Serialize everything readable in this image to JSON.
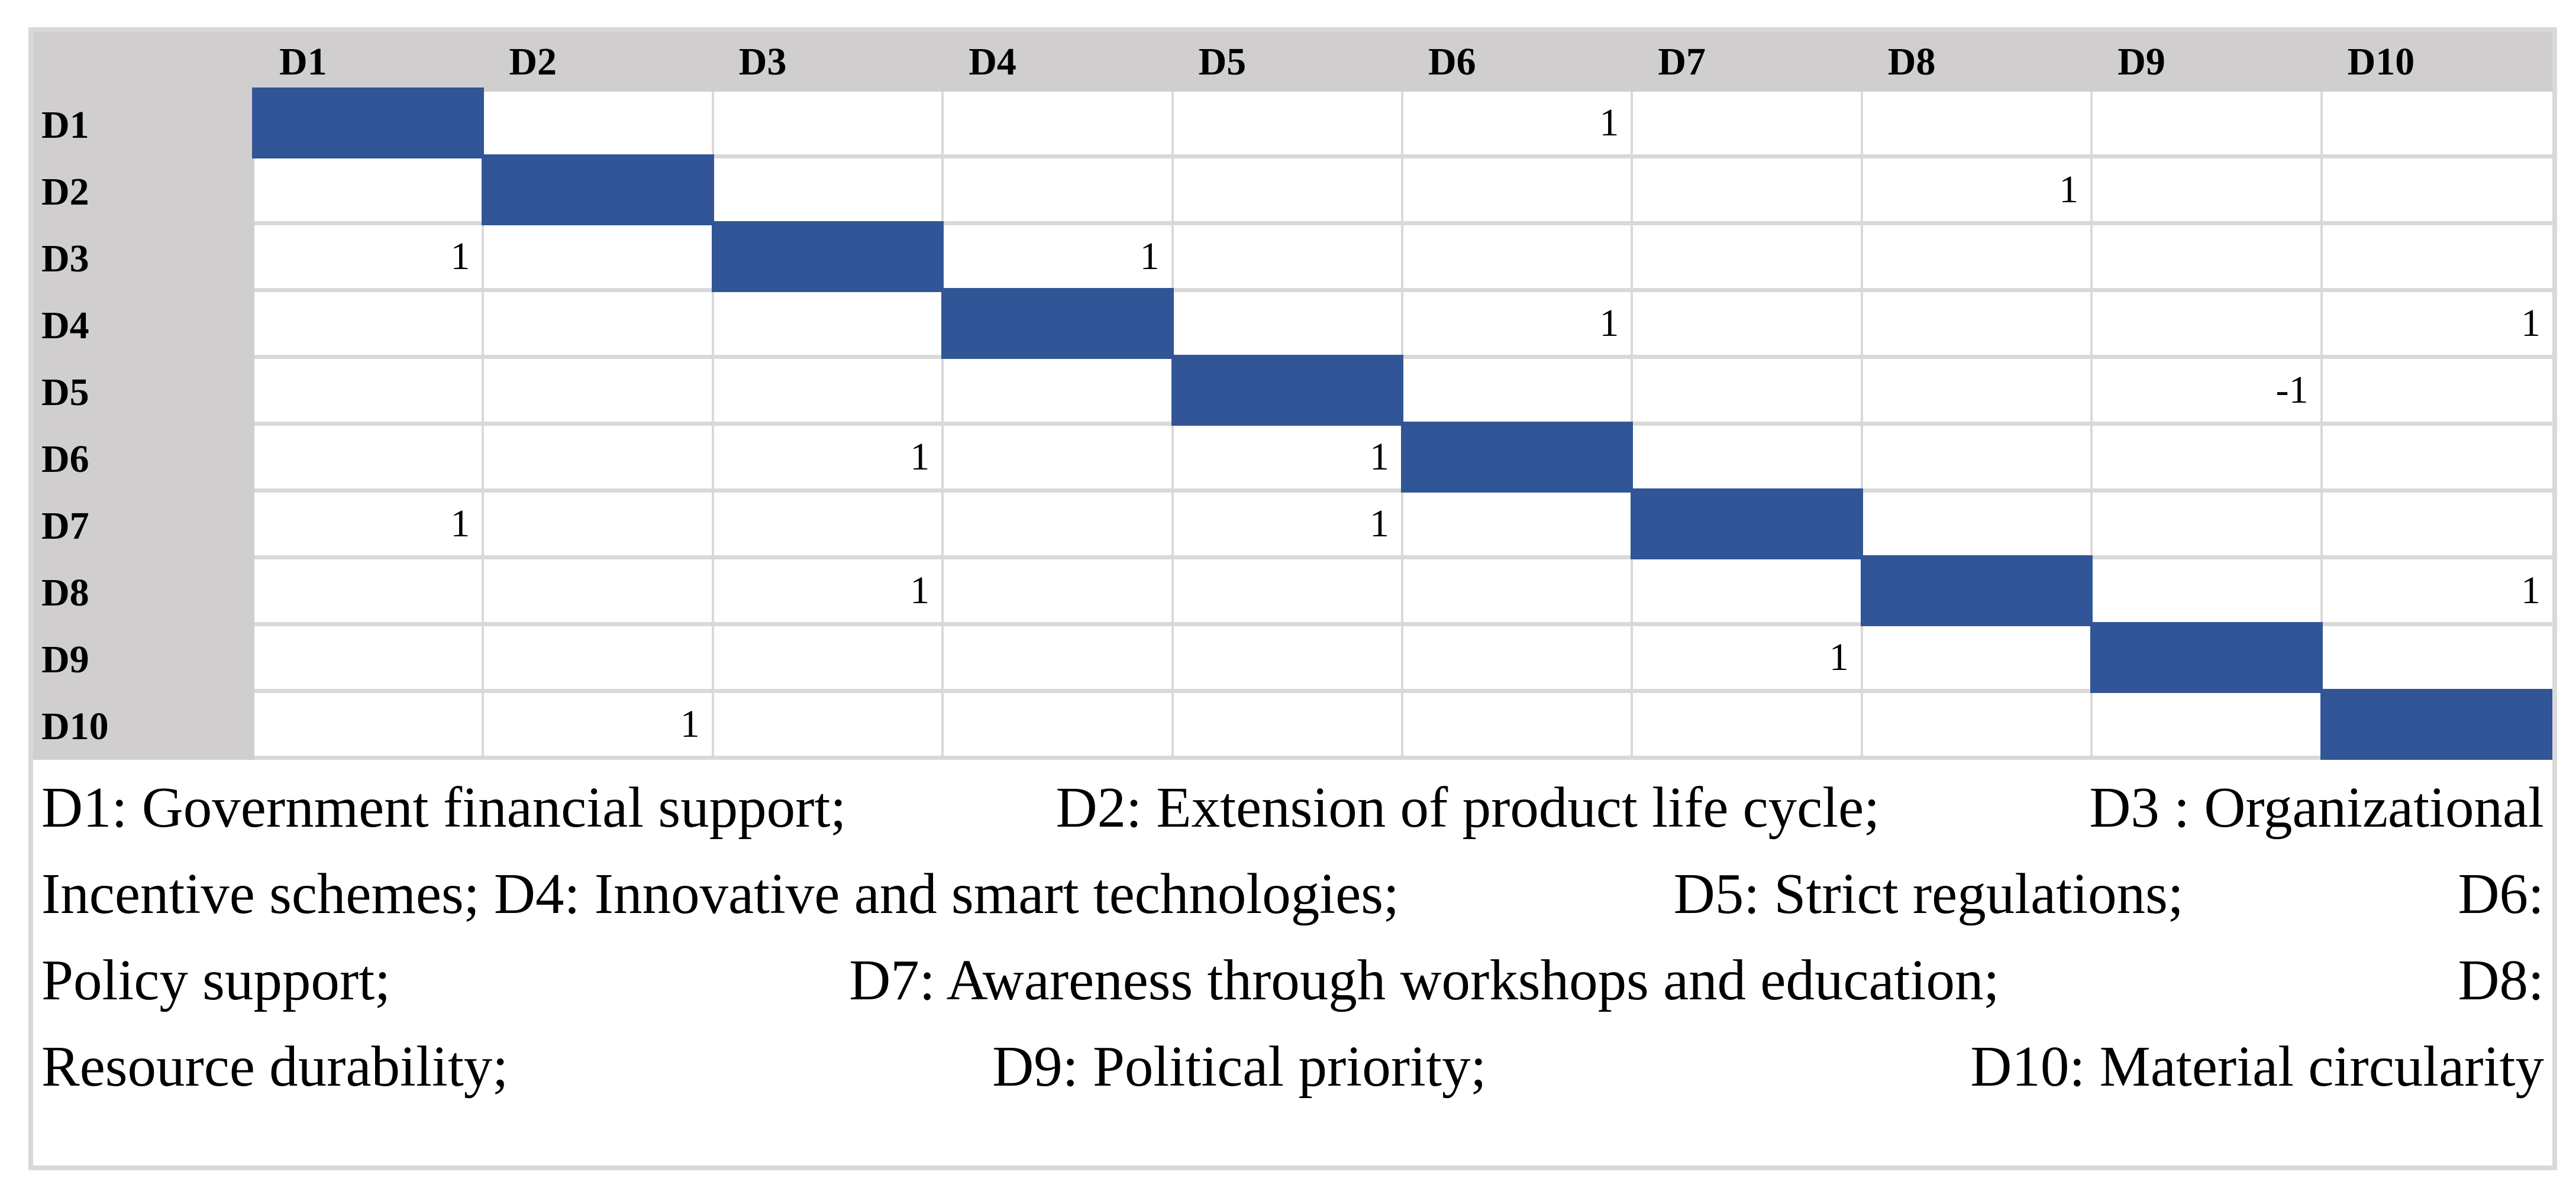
{
  "chart_data": {
    "type": "table",
    "columns": [
      "D1",
      "D2",
      "D3",
      "D4",
      "D5",
      "D6",
      "D7",
      "D8",
      "D9",
      "D10"
    ],
    "row_labels": [
      "D1",
      "D2",
      "D3",
      "D4",
      "D5",
      "D6",
      "D7",
      "D8",
      "D9",
      "D10"
    ],
    "cells": [
      [
        null,
        null,
        null,
        null,
        null,
        1,
        null,
        null,
        null,
        null
      ],
      [
        null,
        null,
        null,
        null,
        null,
        null,
        null,
        1,
        null,
        null
      ],
      [
        1,
        null,
        null,
        1,
        null,
        null,
        null,
        null,
        null,
        null
      ],
      [
        null,
        null,
        null,
        null,
        null,
        1,
        null,
        null,
        null,
        1
      ],
      [
        null,
        null,
        null,
        null,
        null,
        null,
        null,
        null,
        -1,
        null
      ],
      [
        null,
        null,
        1,
        null,
        1,
        null,
        null,
        null,
        null,
        null
      ],
      [
        1,
        null,
        null,
        null,
        1,
        null,
        null,
        null,
        null,
        null
      ],
      [
        null,
        null,
        1,
        null,
        null,
        null,
        null,
        null,
        null,
        1
      ],
      [
        null,
        null,
        null,
        null,
        null,
        null,
        1,
        null,
        null,
        null
      ],
      [
        null,
        1,
        null,
        null,
        null,
        null,
        null,
        null,
        null,
        null
      ]
    ],
    "diagonal_filled": true,
    "layout_hints": {
      "diagonal_cells_fill": "#315596",
      "header_band_fill": "#d0cece",
      "gridline_color": "#d9d9d9",
      "values_alignment": "right"
    }
  },
  "legend": {
    "lines": [
      [
        "D1: Government financial support;",
        "D2: Extension of product life cycle;",
        "D3 : Organizational"
      ],
      [
        "Incentive schemes; D4: Innovative and smart technologies;",
        "D5: Strict regulations;",
        "D6:"
      ],
      [
        "Policy support;",
        "D7: Awareness through workshops and education;",
        "D8:"
      ],
      [
        "Resource durability;",
        "D9: Political priority;",
        "D10: Material circularity"
      ]
    ]
  },
  "colors": {
    "band_fill": "#d0cece",
    "gridline": "#d9d9d9",
    "diagonal_fill": "#315596",
    "text": "#000000",
    "page_background": "#ffffff"
  }
}
